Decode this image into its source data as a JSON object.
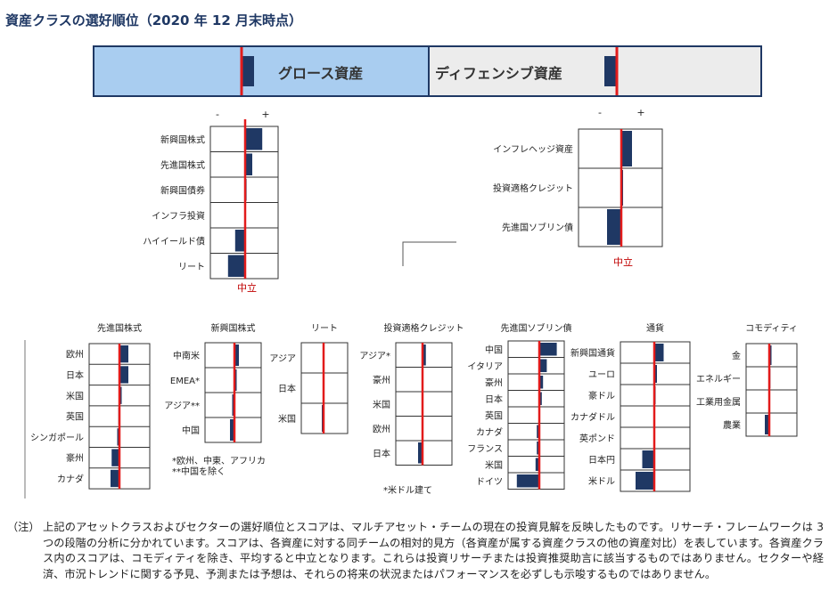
{
  "title": "資産クラスの選好順位（2020 年 12 月末時点）",
  "banner": {
    "growth_label": "グロース資産",
    "defensive_label": "ディフェンシブ資産",
    "growth_score": 0.7,
    "defensive_score": -0.7
  },
  "colors": {
    "bar": "#1f3864",
    "neutral_line": "#e21b1b",
    "growth_fill": "#a9cdf0",
    "defensive_fill": "#ececec",
    "neutral_label": "#c00000"
  },
  "chart_data": [
    {
      "type": "bar",
      "title": "",
      "group": "グロース資産",
      "axis_labels": {
        "minus": "-",
        "plus": "+"
      },
      "neutral_label": "中立",
      "categories": [
        "新興国株式",
        "先進国株式",
        "新興国債券",
        "インフラ投資",
        "ハイイールド債",
        "リート"
      ],
      "values": [
        0.6,
        0.25,
        0.05,
        0.0,
        -0.35,
        -0.6
      ],
      "xlim": [
        -1,
        1
      ]
    },
    {
      "type": "bar",
      "title": "",
      "group": "ディフェンシブ資産",
      "axis_labels": {
        "minus": "-",
        "plus": "+"
      },
      "neutral_label": "中立",
      "categories": [
        "インフレヘッジ資産",
        "投資適格クレジット",
        "先進国ソブリン債"
      ],
      "values": [
        0.3,
        0.05,
        -0.4
      ],
      "xlim": [
        -1,
        1
      ]
    },
    {
      "type": "bar",
      "title": "先進国株式",
      "categories": [
        "欧州",
        "日本",
        "米国",
        "英国",
        "シンガポール",
        "豪州",
        "カナダ"
      ],
      "values": [
        0.4,
        0.4,
        0.1,
        -0.05,
        -0.1,
        -0.35,
        -0.4
      ],
      "xlim": [
        -1,
        1
      ]
    },
    {
      "type": "bar",
      "title": "新興国株式",
      "categories": [
        "中南米",
        "EMEA*",
        "アジア**",
        "中国"
      ],
      "values": [
        0.2,
        0.1,
        -0.1,
        -0.2
      ],
      "xlim": [
        -1,
        1
      ]
    },
    {
      "type": "bar",
      "title": "リート",
      "categories": [
        "アジア",
        "日本",
        "米国"
      ],
      "values": [
        0.0,
        0.0,
        -0.1
      ],
      "xlim": [
        -1,
        1
      ]
    },
    {
      "type": "bar",
      "title": "投資適格クレジット",
      "categories": [
        "アジア*",
        "豪州",
        "米国",
        "欧州",
        "日本"
      ],
      "values": [
        0.15,
        0.0,
        0.0,
        0.0,
        -0.2
      ],
      "xlim": [
        -1,
        1
      ]
    },
    {
      "type": "bar",
      "title": "先進国ソブリン債",
      "categories": [
        "中国",
        "イタリア",
        "豪州",
        "日本",
        "英国",
        "カナダ",
        "フランス",
        "米国",
        "ドイツ"
      ],
      "values": [
        0.7,
        0.3,
        0.15,
        0.1,
        0.0,
        -0.1,
        -0.1,
        -0.15,
        -0.9
      ],
      "xlim": [
        -1,
        1
      ]
    },
    {
      "type": "bar",
      "title": "通貨",
      "categories": [
        "新興国通貨",
        "ユーロ",
        "豪ドル",
        "カナダドル",
        "英ポンド",
        "日本円",
        "米ドル"
      ],
      "values": [
        0.35,
        0.1,
        0.05,
        0.0,
        0.0,
        -0.45,
        -0.7
      ],
      "xlim": [
        -1,
        1
      ]
    },
    {
      "type": "bar",
      "title": "コモディティ",
      "categories": [
        "金",
        "エネルギー",
        "工業用金属",
        "農業"
      ],
      "values": [
        0.1,
        0.05,
        0.0,
        -0.2
      ],
      "xlim": [
        -1,
        1
      ]
    }
  ],
  "footnotes": {
    "em_equity": "*欧州、中東、アフリカ",
    "em_equity2": "**中国を除く",
    "ig_credit": "*米ドル建て"
  },
  "note": {
    "head": "（注）",
    "body": "上記のアセットクラスおよびセクターの選好順位とスコアは、マルチアセット・チームの現在の投資見解を反映したものです。リサーチ・フレームワークは 3 つの段階の分析に分かれています。スコアは、各資産に対する同チームの相対的見方（各資産が属する資産クラスの他の資産対比）を表しています。各資産クラス内のスコアは、コモディティを除き、平均すると中立となります。これらは投資リサーチまたは投資推奨助言に該当するものではありません。セクターや経済、市況トレンドに関する予見、予測または予想は、それらの将来の状況またはパフォーマンスを必ずしも示唆するものではありません。"
  }
}
